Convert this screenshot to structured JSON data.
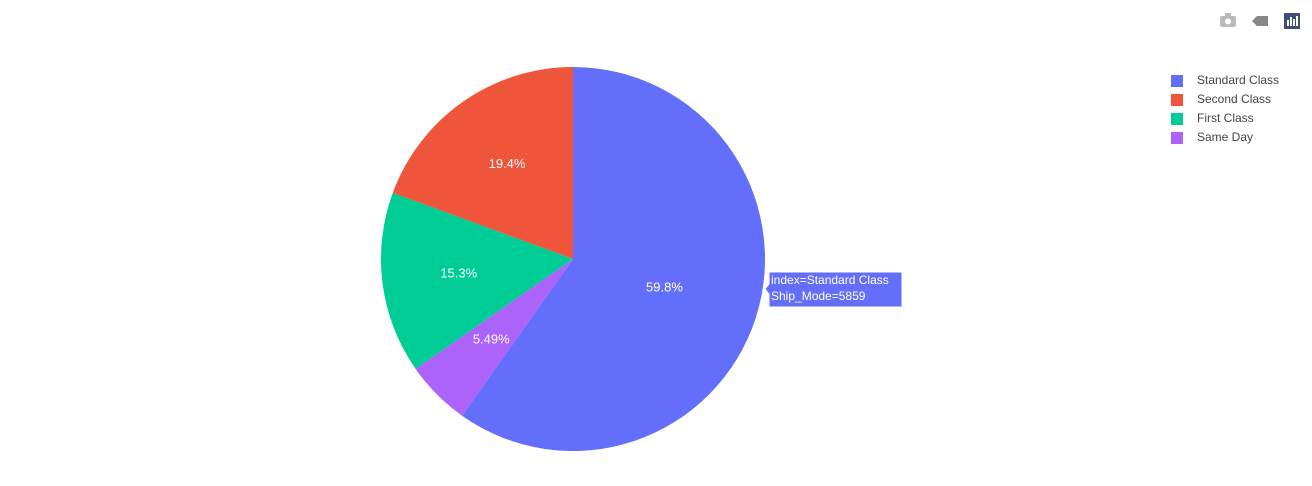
{
  "chart_data": {
    "type": "pie",
    "series": [
      {
        "name": "Standard Class",
        "color": "#636efa",
        "values": [
          59.8
        ],
        "value_labels": [
          "59.8%"
        ]
      },
      {
        "name": "Second Class",
        "color": "#ef553b",
        "values": [
          19.4
        ],
        "value_labels": [
          "19.4%"
        ]
      },
      {
        "name": "First Class",
        "color": "#00cc96",
        "values": [
          15.3
        ],
        "value_labels": [
          "15.3%"
        ]
      },
      {
        "name": "Same Day",
        "color": "#ab63fa",
        "values": [
          5.49
        ],
        "value_labels": [
          "5.49%"
        ]
      }
    ],
    "legend": "top-right",
    "hover": {
      "lines": [
        "index=Standard Class",
        "Ship_Mode=5859"
      ]
    }
  }
}
